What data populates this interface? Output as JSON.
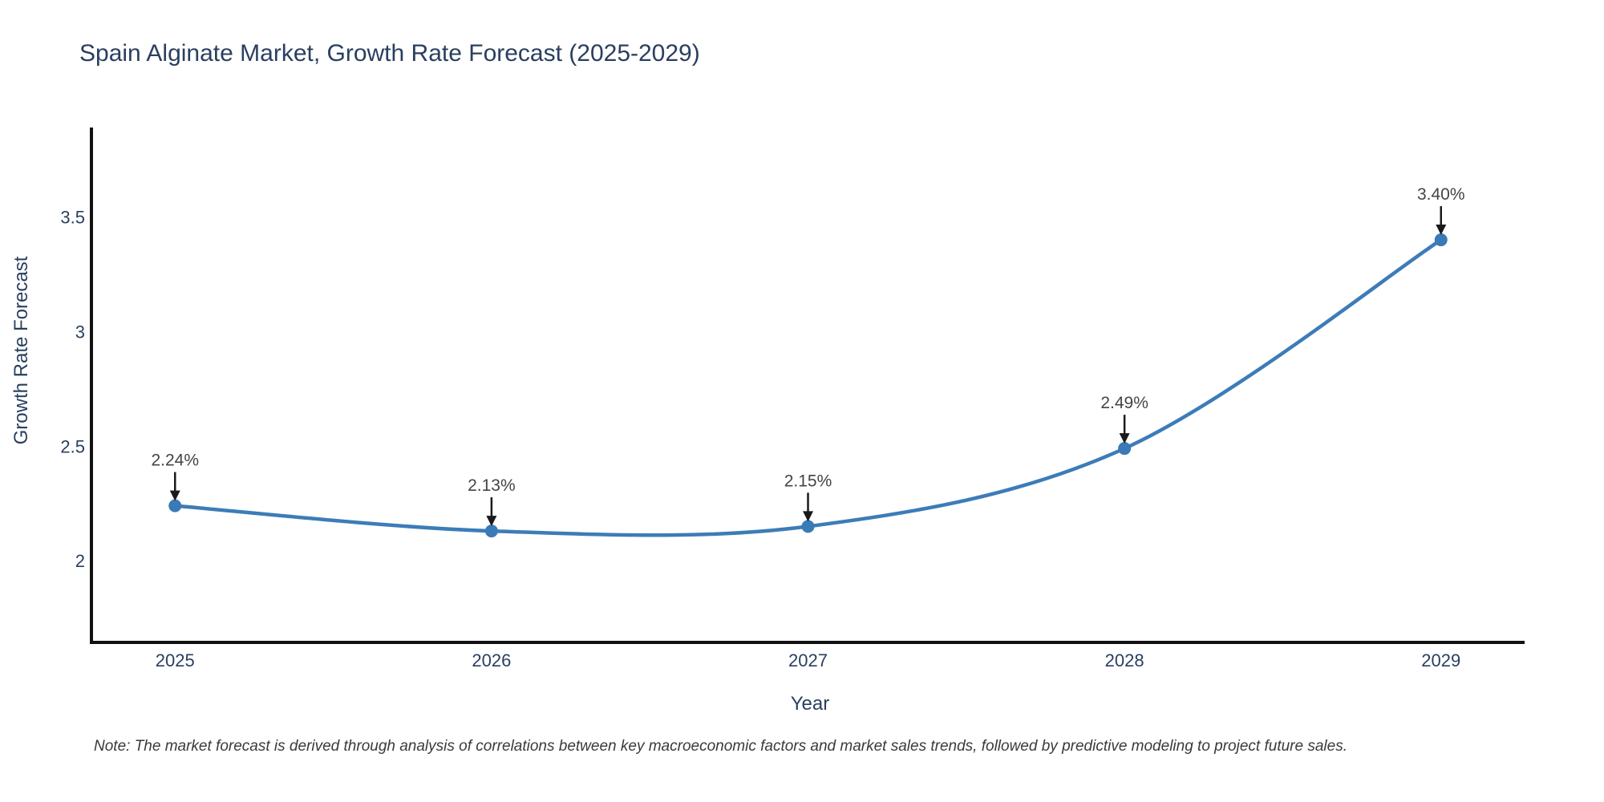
{
  "chart_data": {
    "type": "line",
    "line_shape": "spline",
    "title": "Spain Alginate Market, Growth Rate Forecast (2025-2029)",
    "xlabel": "Year",
    "ylabel": "Growth Rate Forecast",
    "categories": [
      "2025",
      "2026",
      "2027",
      "2028",
      "2029"
    ],
    "series": [
      {
        "name": "Growth Rate Forecast",
        "values": [
          2.24,
          2.13,
          2.15,
          2.49,
          3.4
        ],
        "point_labels": [
          "2.24%",
          "2.13%",
          "2.15%",
          "2.49%",
          "3.40%"
        ]
      }
    ],
    "y_ticks": [
      2,
      2.5,
      3,
      3.5
    ],
    "ylim": [
      1.644,
      3.89
    ],
    "grid": false,
    "legend_position": "none",
    "note": "Note: The market forecast is derived through analysis of correlations between key macroeconomic factors and market sales trends, followed by predictive modeling to project future sales.",
    "colors": {
      "line": "#3c7cb8",
      "marker": "#3a7ab6",
      "axis_line": "#111111",
      "tick_text": "#2a3f5f",
      "title_text": "#2a3f5f",
      "annotation_text": "#444444",
      "annotation_arrow": "#1a1a1a",
      "background": "#ffffff"
    }
  }
}
